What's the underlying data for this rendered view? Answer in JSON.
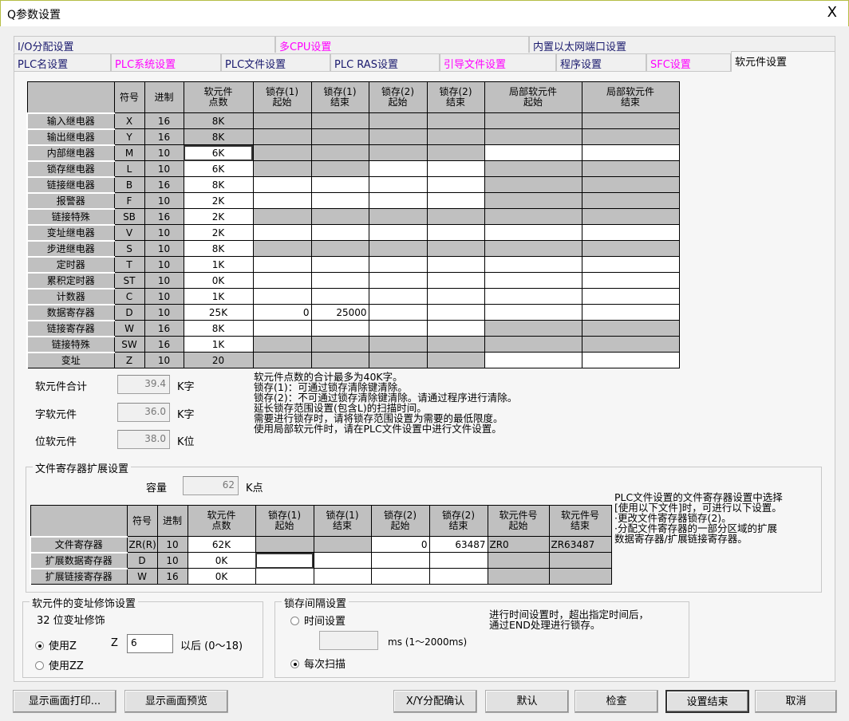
{
  "window": {
    "title": "Q参数设置",
    "close": "X"
  },
  "tabs_row1": [
    {
      "label": "I/O分配设置",
      "color": "#1a1a6e"
    },
    {
      "label": "多CPU设置",
      "color": "#ff00ff"
    },
    {
      "label": "内置以太网端口设置",
      "color": "#1a1a6e"
    }
  ],
  "tabs_row2": [
    {
      "label": "PLC名设置",
      "color": "#1a1a6e"
    },
    {
      "label": "PLC系统设置",
      "color": "#ff00ff"
    },
    {
      "label": "PLC文件设置",
      "color": "#1a1a6e"
    },
    {
      "label": "PLC RAS设置",
      "color": "#1a1a6e"
    },
    {
      "label": "引导文件设置",
      "color": "#ff00ff"
    },
    {
      "label": "程序设置",
      "color": "#1a1a6e"
    },
    {
      "label": "SFC设置",
      "color": "#ff00ff"
    },
    {
      "label": "软元件设置",
      "color": "#000000",
      "active": true
    }
  ],
  "device_table": {
    "headers": [
      "",
      "符号",
      "进制",
      "软元件\n点数",
      "锁存(1)\n起始",
      "锁存(1)\n结束",
      "锁存(2)\n起始",
      "锁存(2)\n结束",
      "局部软元件\n起始",
      "局部软元件\n结束"
    ],
    "rows": [
      {
        "name": "输入继电器",
        "sym": "X",
        "base": "16",
        "points": "8K",
        "cells": [
          "",
          "",
          "",
          "",
          "",
          "",
          ""
        ],
        "editable": [
          0,
          0,
          0,
          0,
          0,
          0,
          0
        ]
      },
      {
        "name": "输出继电器",
        "sym": "Y",
        "base": "16",
        "points": "8K",
        "cells": [
          "",
          "",
          "",
          "",
          "",
          "",
          ""
        ],
        "editable": [
          0,
          0,
          0,
          0,
          0,
          0,
          0
        ]
      },
      {
        "name": "内部继电器",
        "sym": "M",
        "base": "10",
        "points": "6K",
        "cells": [
          "",
          "",
          "",
          "",
          "",
          "",
          ""
        ],
        "editable": [
          1,
          0,
          0,
          0,
          0,
          1,
          1
        ],
        "selected": true
      },
      {
        "name": "锁存继电器",
        "sym": "L",
        "base": "10",
        "points": "6K",
        "cells": [
          "",
          "",
          "",
          "",
          "",
          "",
          ""
        ],
        "editable": [
          1,
          0,
          0,
          1,
          1,
          0,
          0
        ]
      },
      {
        "name": "链接继电器",
        "sym": "B",
        "base": "16",
        "points": "8K",
        "cells": [
          "",
          "",
          "",
          "",
          "",
          "",
          ""
        ],
        "editable": [
          1,
          1,
          1,
          1,
          1,
          0,
          0
        ]
      },
      {
        "name": "报警器",
        "sym": "F",
        "base": "10",
        "points": "2K",
        "cells": [
          "",
          "",
          "",
          "",
          "",
          "",
          ""
        ],
        "editable": [
          1,
          1,
          1,
          1,
          1,
          0,
          0
        ]
      },
      {
        "name": "链接特殊",
        "sym": "SB",
        "base": "16",
        "points": "2K",
        "cells": [
          "",
          "",
          "",
          "",
          "",
          "",
          ""
        ],
        "editable": [
          1,
          0,
          0,
          0,
          0,
          0,
          0
        ]
      },
      {
        "name": "变址继电器",
        "sym": "V",
        "base": "10",
        "points": "2K",
        "cells": [
          "",
          "",
          "",
          "",
          "",
          "",
          ""
        ],
        "editable": [
          1,
          1,
          1,
          1,
          1,
          1,
          1
        ]
      },
      {
        "name": "步进继电器",
        "sym": "S",
        "base": "10",
        "points": "8K",
        "cells": [
          "",
          "",
          "",
          "",
          "",
          "",
          ""
        ],
        "editable": [
          1,
          0,
          0,
          0,
          0,
          0,
          0
        ]
      },
      {
        "name": "定时器",
        "sym": "T",
        "base": "10",
        "points": "1K",
        "cells": [
          "",
          "",
          "",
          "",
          "",
          "",
          ""
        ],
        "editable": [
          1,
          1,
          1,
          1,
          1,
          1,
          1
        ]
      },
      {
        "name": "累积定时器",
        "sym": "ST",
        "base": "10",
        "points": "0K",
        "cells": [
          "",
          "",
          "",
          "",
          "",
          "",
          ""
        ],
        "editable": [
          1,
          1,
          1,
          1,
          1,
          1,
          1
        ]
      },
      {
        "name": "计数器",
        "sym": "C",
        "base": "10",
        "points": "1K",
        "cells": [
          "",
          "",
          "",
          "",
          "",
          "",
          ""
        ],
        "editable": [
          1,
          1,
          1,
          1,
          1,
          1,
          1
        ]
      },
      {
        "name": "数据寄存器",
        "sym": "D",
        "base": "10",
        "points": "25K",
        "cells": [
          "",
          "0",
          "25000",
          "",
          "",
          "",
          ""
        ],
        "editable": [
          1,
          1,
          1,
          1,
          1,
          1,
          1
        ]
      },
      {
        "name": "链接寄存器",
        "sym": "W",
        "base": "16",
        "points": "8K",
        "cells": [
          "",
          "",
          "",
          "",
          "",
          "",
          ""
        ],
        "editable": [
          1,
          1,
          1,
          1,
          1,
          0,
          0
        ]
      },
      {
        "name": "链接特殊",
        "sym": "SW",
        "base": "16",
        "points": "1K",
        "cells": [
          "",
          "",
          "",
          "",
          "",
          "",
          ""
        ],
        "editable": [
          1,
          0,
          0,
          0,
          0,
          0,
          0
        ]
      },
      {
        "name": "变址",
        "sym": "Z",
        "base": "10",
        "points": "20",
        "cells": [
          "",
          "",
          "",
          "",
          "",
          "",
          ""
        ],
        "editable": [
          0,
          0,
          0,
          0,
          0,
          1,
          1
        ]
      }
    ]
  },
  "totals": {
    "total_label": "软元件合计",
    "total_value": "39.4",
    "total_unit": "K字",
    "word_label": "字软元件",
    "word_value": "36.0",
    "word_unit": "K字",
    "bit_label": "位软元件",
    "bit_value": "38.0",
    "bit_unit": "K位"
  },
  "notes": "软元件点数的合计最多为40K字。\n锁存(1)：可通过锁存清除键清除。\n锁存(2)：不可通过锁存清除键清除。请通过程序进行清除。\n延长锁存范围设置(包含L)的扫描时间。\n需要进行锁存时，请将锁存范围设置为需要的最低限度。\n使用局部软元件时，请在PLC文件设置中进行文件设置。",
  "file_register": {
    "title": "文件寄存器扩展设置",
    "capacity_label": "容量",
    "capacity_value": "62",
    "capacity_unit": "K点",
    "headers": [
      "",
      "符号",
      "进制",
      "软元件\n点数",
      "锁存(1)\n起始",
      "锁存(1)\n结束",
      "锁存(2)\n起始",
      "锁存(2)\n结束",
      "软元件号\n起始",
      "软元件号\n结束"
    ],
    "rows": [
      {
        "name": "文件寄存器",
        "sym": "ZR(R)",
        "base": "10",
        "points": "62K",
        "cells": [
          "",
          "",
          "0",
          "63487",
          "ZR0",
          "ZR63487"
        ],
        "editable": [
          1,
          0,
          0,
          1,
          1,
          0,
          0
        ]
      },
      {
        "name": "扩展数据寄存器",
        "sym": "D",
        "base": "10",
        "points": "0K",
        "cells": [
          "",
          "",
          "",
          "",
          "",
          ""
        ],
        "editable": [
          1,
          1,
          1,
          1,
          1,
          0,
          0
        ],
        "selected_col": 1
      },
      {
        "name": "扩展链接寄存器",
        "sym": "W",
        "base": "16",
        "points": "0K",
        "cells": [
          "",
          "",
          "",
          "",
          "",
          ""
        ],
        "editable": [
          1,
          1,
          1,
          1,
          1,
          0,
          0
        ]
      }
    ],
    "note": "PLC文件设置的文件寄存器设置中选择\n[使用以下文件]时，可进行以下设置。\n·更改文件寄存器锁存(2)。\n·分配文件寄存器的一部分区域的扩展\n数据寄存器/扩展链接寄存器。"
  },
  "index_mod": {
    "title": "软元件的变址修饰设置",
    "sub": "32 位变址修饰",
    "opt_z": "使用Z",
    "opt_zz": "使用ZZ",
    "selected": "使用Z",
    "z_label": "Z",
    "z_value": "6",
    "z_suffix": "以后 (0～18)"
  },
  "latch_interval": {
    "title": "锁存间隔设置",
    "opt_time": "时间设置",
    "time_value": "",
    "ms_label": "ms  (1～2000ms)",
    "opt_scan": "每次扫描",
    "selected": "每次扫描",
    "note": "进行时间设置时，超出指定时间后，\n通过END处理进行锁存。"
  },
  "buttons": {
    "print": "显示画面打印...",
    "preview": "显示画面预览",
    "xy": "X/Y分配确认",
    "default": "默认",
    "check": "检查",
    "finish": "设置结束",
    "cancel": "取消"
  }
}
